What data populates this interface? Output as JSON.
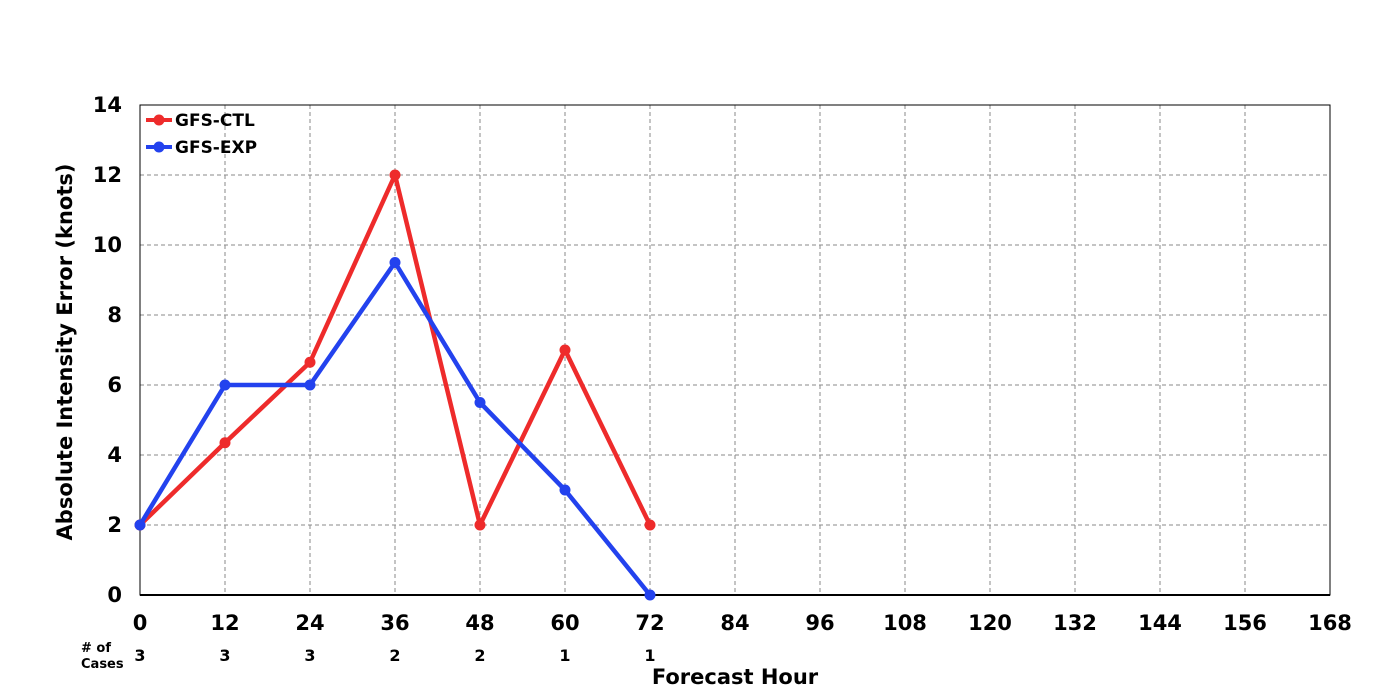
{
  "chart_data": {
    "type": "line",
    "title": "",
    "xlabel": "Forecast Hour",
    "ylabel": "Absolute Intensity Error (knots)",
    "xlim": [
      0,
      168
    ],
    "ylim": [
      0,
      14
    ],
    "xticks": [
      0,
      12,
      24,
      36,
      48,
      60,
      72,
      84,
      96,
      108,
      120,
      132,
      144,
      156,
      168
    ],
    "yticks": [
      0,
      2,
      4,
      6,
      8,
      10,
      12,
      14
    ],
    "grid": true,
    "legend_position": "top-left",
    "cases_label": [
      "# of",
      "Cases"
    ],
    "cases": [
      {
        "x": 0,
        "count": "3"
      },
      {
        "x": 12,
        "count": "3"
      },
      {
        "x": 24,
        "count": "3"
      },
      {
        "x": 36,
        "count": "2"
      },
      {
        "x": 48,
        "count": "2"
      },
      {
        "x": 60,
        "count": "1"
      },
      {
        "x": 72,
        "count": "1"
      }
    ],
    "x": [
      0,
      12,
      24,
      36,
      48,
      60,
      72
    ],
    "series": [
      {
        "name": "GFS-CTL",
        "color": "#ee2b2b",
        "values": [
          2.0,
          4.35,
          6.65,
          12.0,
          2.0,
          7.0,
          2.0
        ]
      },
      {
        "name": "GFS-EXP",
        "color": "#2342ee",
        "values": [
          2.0,
          6.0,
          6.0,
          9.5,
          5.5,
          3.0,
          0.0
        ]
      }
    ]
  }
}
